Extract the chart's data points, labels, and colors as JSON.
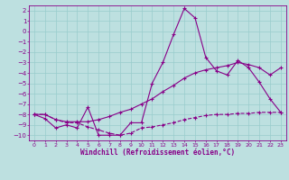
{
  "x": [
    0,
    1,
    2,
    3,
    4,
    5,
    6,
    7,
    8,
    9,
    10,
    11,
    12,
    13,
    14,
    15,
    16,
    17,
    18,
    19,
    20,
    21,
    22,
    23
  ],
  "line1": [
    -8.0,
    -8.4,
    -9.3,
    -9.0,
    -9.3,
    -7.3,
    -10.0,
    -10.0,
    -10.0,
    -8.8,
    -8.8,
    -5.0,
    -3.0,
    -0.3,
    2.2,
    1.3,
    -2.5,
    -3.8,
    -4.2,
    -2.8,
    -3.5,
    -4.9,
    -6.5,
    -7.8
  ],
  "line2": [
    -8.0,
    -8.0,
    -8.5,
    -8.7,
    -8.7,
    -8.7,
    -8.5,
    -8.2,
    -7.8,
    -7.5,
    -7.0,
    -6.5,
    -5.8,
    -5.2,
    -4.5,
    -4.0,
    -3.7,
    -3.5,
    -3.3,
    -3.0,
    -3.2,
    -3.5,
    -4.2,
    -3.5
  ],
  "line3": [
    -8.0,
    -8.0,
    -8.5,
    -8.8,
    -8.8,
    -9.2,
    -9.5,
    -9.8,
    -10.0,
    -9.8,
    -9.3,
    -9.2,
    -9.0,
    -8.8,
    -8.5,
    -8.3,
    -8.1,
    -8.0,
    -8.0,
    -7.9,
    -7.9,
    -7.8,
    -7.8,
    -7.8
  ],
  "bg_color": "#bde0e0",
  "line_color": "#880088",
  "grid_color": "#99cccc",
  "ylim": [
    -10.5,
    2.5
  ],
  "xlim": [
    -0.5,
    23.5
  ],
  "yticks": [
    2,
    1,
    0,
    -1,
    -2,
    -3,
    -4,
    -5,
    -6,
    -7,
    -8,
    -9,
    -10
  ],
  "xticks": [
    0,
    1,
    2,
    3,
    4,
    5,
    6,
    7,
    8,
    9,
    10,
    11,
    12,
    13,
    14,
    15,
    16,
    17,
    18,
    19,
    20,
    21,
    22,
    23
  ],
  "xlabel": "Windchill (Refroidissement éolien,°C)"
}
